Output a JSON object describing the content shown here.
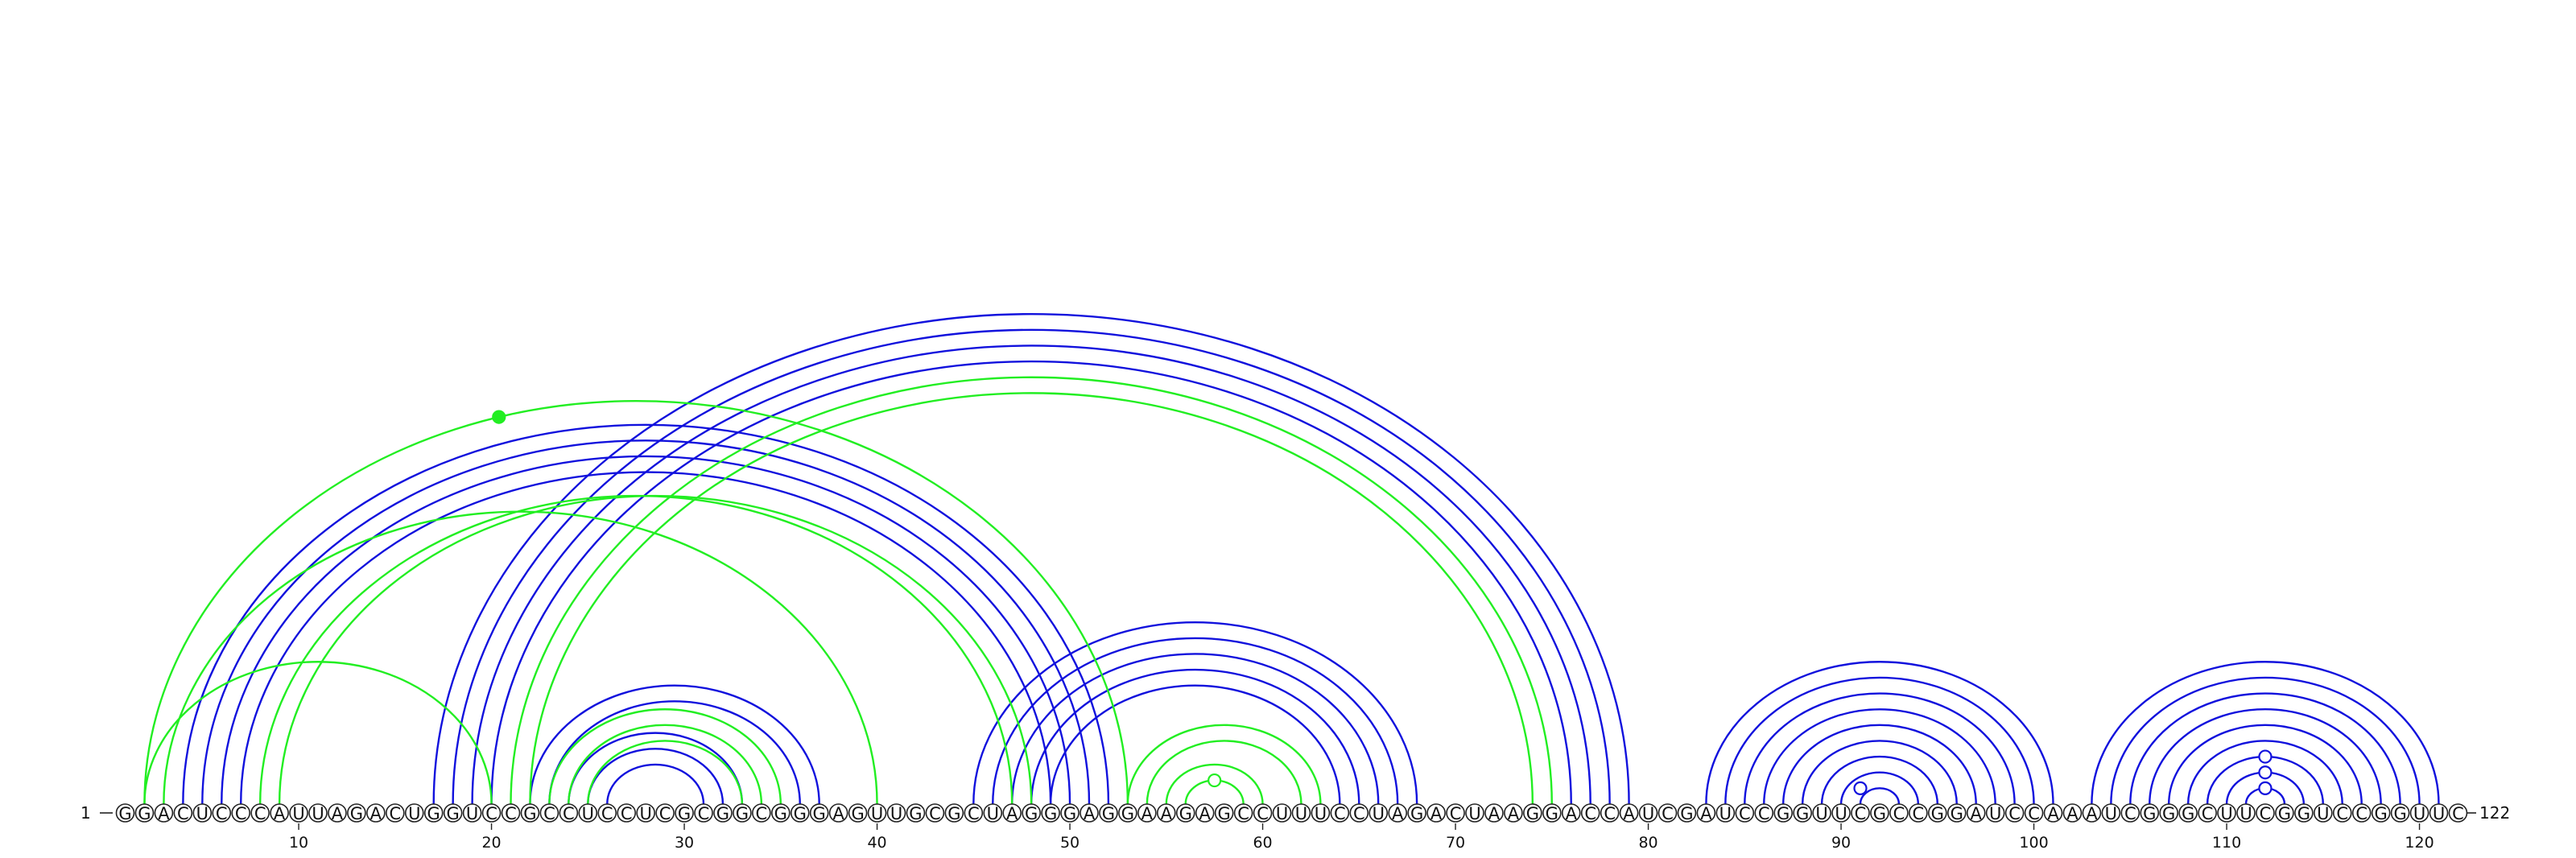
{
  "sequence": "GGACUCCCAUUAGACUGGUCCGCCUCCUCGCGGCGGGAGUUGCGCUAGGGAGGAAGAGCCUUUCCUAGACUAAGGACCAUCGAUCCGGUUCGCCGGAUCCAAAUCGGGCUUCGGUCCGGUUC",
  "start_label": "1",
  "end_label": "122",
  "ticks": [
    {
      "pos": 10,
      "label": "10"
    },
    {
      "pos": 20,
      "label": "20"
    },
    {
      "pos": 30,
      "label": "30"
    },
    {
      "pos": 40,
      "label": "40"
    },
    {
      "pos": 50,
      "label": "50"
    },
    {
      "pos": 60,
      "label": "60"
    },
    {
      "pos": 70,
      "label": "70"
    },
    {
      "pos": 80,
      "label": "80"
    },
    {
      "pos": 90,
      "label": "90"
    },
    {
      "pos": 100,
      "label": "100"
    },
    {
      "pos": 110,
      "label": "110"
    },
    {
      "pos": 120,
      "label": "120"
    }
  ],
  "colors": {
    "blue": "#1111dd",
    "green": "#22ee22"
  },
  "chart_data": {
    "type": "arc-diagram",
    "arcs": [
      {
        "i": 4,
        "j": 52,
        "color": "blue"
      },
      {
        "i": 5,
        "j": 51,
        "color": "blue"
      },
      {
        "i": 6,
        "j": 50,
        "color": "blue"
      },
      {
        "i": 7,
        "j": 49,
        "color": "blue"
      },
      {
        "i": 17,
        "j": 79,
        "color": "blue"
      },
      {
        "i": 18,
        "j": 78,
        "color": "blue"
      },
      {
        "i": 19,
        "j": 77,
        "color": "blue"
      },
      {
        "i": 20,
        "j": 76,
        "color": "blue"
      },
      {
        "i": 22,
        "j": 37,
        "color": "blue"
      },
      {
        "i": 23,
        "j": 36,
        "color": "blue"
      },
      {
        "i": 24,
        "j": 33,
        "color": "blue"
      },
      {
        "i": 25,
        "j": 32,
        "color": "blue"
      },
      {
        "i": 26,
        "j": 31,
        "color": "blue"
      },
      {
        "i": 45,
        "j": 68,
        "color": "blue"
      },
      {
        "i": 46,
        "j": 67,
        "color": "blue"
      },
      {
        "i": 47,
        "j": 66,
        "color": "blue"
      },
      {
        "i": 48,
        "j": 65,
        "color": "blue"
      },
      {
        "i": 49,
        "j": 64,
        "color": "blue"
      },
      {
        "i": 83,
        "j": 101,
        "color": "blue"
      },
      {
        "i": 84,
        "j": 100,
        "color": "blue"
      },
      {
        "i": 85,
        "j": 99,
        "color": "blue"
      },
      {
        "i": 86,
        "j": 98,
        "color": "blue"
      },
      {
        "i": 87,
        "j": 97,
        "color": "blue"
      },
      {
        "i": 88,
        "j": 96,
        "color": "blue"
      },
      {
        "i": 89,
        "j": 95,
        "color": "blue"
      },
      {
        "i": 90,
        "j": 94,
        "color": "blue"
      },
      {
        "i": 91,
        "j": 93,
        "color": "blue"
      },
      {
        "i": 103,
        "j": 121,
        "color": "blue"
      },
      {
        "i": 104,
        "j": 120,
        "color": "blue"
      },
      {
        "i": 105,
        "j": 119,
        "color": "blue"
      },
      {
        "i": 106,
        "j": 118,
        "color": "blue"
      },
      {
        "i": 107,
        "j": 117,
        "color": "blue"
      },
      {
        "i": 108,
        "j": 116,
        "color": "blue"
      },
      {
        "i": 109,
        "j": 115,
        "color": "blue"
      },
      {
        "i": 110,
        "j": 114,
        "color": "blue"
      },
      {
        "i": 111,
        "j": 113,
        "color": "blue"
      },
      {
        "i": 2,
        "j": 53,
        "color": "green"
      },
      {
        "i": 3,
        "j": 40,
        "color": "green"
      },
      {
        "i": 2,
        "j": 20,
        "color": "green"
      },
      {
        "i": 8,
        "j": 47,
        "color": "green"
      },
      {
        "i": 9,
        "j": 48,
        "color": "green"
      },
      {
        "i": 21,
        "j": 75,
        "color": "green"
      },
      {
        "i": 22,
        "j": 74,
        "color": "green"
      },
      {
        "i": 23,
        "j": 35,
        "color": "green"
      },
      {
        "i": 24,
        "j": 34,
        "color": "green"
      },
      {
        "i": 25,
        "j": 33,
        "color": "green"
      },
      {
        "i": 53,
        "j": 63,
        "color": "green"
      },
      {
        "i": 54,
        "j": 62,
        "color": "green"
      },
      {
        "i": 55,
        "j": 60,
        "color": "green"
      },
      {
        "i": 56,
        "j": 59,
        "color": "green"
      }
    ],
    "markers": [
      {
        "i": 2,
        "j": 53,
        "color": "green",
        "filled": true,
        "t": 0.41
      },
      {
        "i": 56,
        "j": 59,
        "color": "green",
        "filled": false,
        "t": 0.5
      },
      {
        "i": 90,
        "j": 92,
        "color": "blue",
        "filled": false,
        "t": 0.5
      },
      {
        "i": 109,
        "j": 115,
        "color": "blue",
        "filled": false,
        "t": 0.5
      },
      {
        "i": 110,
        "j": 114,
        "color": "blue",
        "filled": false,
        "t": 0.5
      },
      {
        "i": 111,
        "j": 113,
        "color": "blue",
        "filled": false,
        "t": 0.5
      }
    ]
  }
}
